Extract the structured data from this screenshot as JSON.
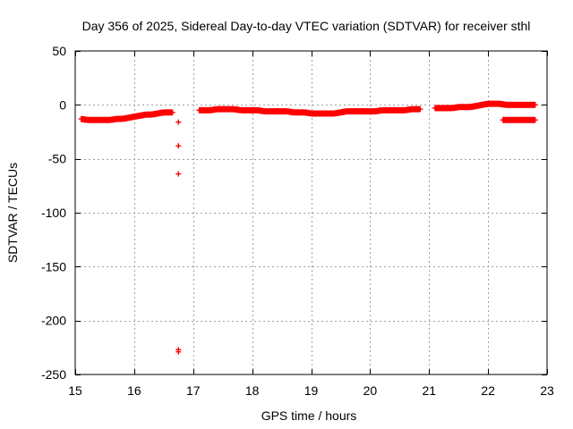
{
  "chart_data": {
    "type": "scatter",
    "title": "Day 356 of 2025, Sidereal Day-to-day VTEC variation (SDTVAR) for receiver sthl",
    "xlabel": "GPS time / hours",
    "ylabel": "SDTVAR / TECUs",
    "xlim": [
      15,
      23
    ],
    "ylim": [
      -250,
      50
    ],
    "xticks": [
      15,
      16,
      17,
      18,
      19,
      20,
      21,
      22,
      23
    ],
    "yticks": [
      50,
      0,
      -50,
      -100,
      -150,
      -200,
      -250
    ],
    "grid": true,
    "marker": "+",
    "color": "#ff0000",
    "series": [
      {
        "name": "SDTVAR",
        "x": [
          15.1,
          15.2,
          15.3,
          15.4,
          15.5,
          15.6,
          15.7,
          15.8,
          15.9,
          16.0,
          16.1,
          16.2,
          16.3,
          16.4,
          16.5,
          16.6,
          16.65,
          16.75,
          16.75,
          16.75,
          16.75,
          16.75,
          17.1,
          17.2,
          17.3,
          17.4,
          17.5,
          17.6,
          17.7,
          17.8,
          17.9,
          18.0,
          18.1,
          18.2,
          18.3,
          18.4,
          18.5,
          18.6,
          18.7,
          18.8,
          18.9,
          19.0,
          19.1,
          19.2,
          19.3,
          19.4,
          19.5,
          19.6,
          19.7,
          19.8,
          19.9,
          20.0,
          20.1,
          20.2,
          20.3,
          20.4,
          20.5,
          20.6,
          20.7,
          20.8,
          20.85,
          21.1,
          21.2,
          21.3,
          21.4,
          21.5,
          21.6,
          21.7,
          21.8,
          21.9,
          22.0,
          22.1,
          22.2,
          22.3,
          22.4,
          22.5,
          22.6,
          22.7,
          22.8,
          22.25,
          22.35,
          22.45,
          22.55,
          22.65,
          22.75,
          22.8
        ],
        "y": [
          -13,
          -14,
          -14,
          -14,
          -14,
          -14,
          -13,
          -13,
          -12,
          -11,
          -10,
          -9,
          -9,
          -8,
          -7,
          -7,
          -7,
          -16,
          -38,
          -64,
          -227,
          -229,
          -5,
          -5,
          -5,
          -4,
          -4,
          -4,
          -4,
          -5,
          -5,
          -5,
          -5,
          -6,
          -6,
          -6,
          -6,
          -6,
          -7,
          -7,
          -7,
          -8,
          -8,
          -8,
          -8,
          -8,
          -7,
          -6,
          -6,
          -6,
          -6,
          -6,
          -6,
          -5,
          -5,
          -5,
          -5,
          -5,
          -4,
          -4,
          -4,
          -3,
          -3,
          -3,
          -3,
          -2,
          -2,
          -2,
          -1,
          0,
          1,
          1,
          1,
          0,
          0,
          0,
          0,
          0,
          0,
          -14,
          -14,
          -14,
          -14,
          -14,
          -14,
          -14
        ]
      }
    ]
  }
}
